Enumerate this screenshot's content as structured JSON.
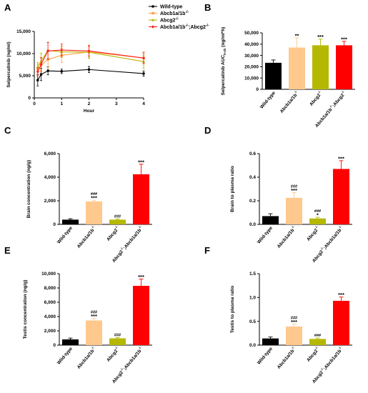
{
  "chart_data": [
    {
      "panel": "A",
      "type": "line",
      "xlabel": "Hour",
      "ylabel": "Selpercatinib (ng/ml)",
      "xlim": [
        0,
        4
      ],
      "ylim": [
        0,
        15000
      ],
      "xticks": [
        "0",
        "1",
        "2",
        "3",
        "4"
      ],
      "yticks": [
        "0",
        "5,000",
        "10,000",
        "15,000"
      ],
      "legend": "top-right",
      "series": [
        {
          "name": "Wild-type",
          "color": "#000000",
          "marker": "circle",
          "x": [
            0.125,
            0.25,
            0.5,
            1,
            2,
            4
          ],
          "y": [
            4000,
            5300,
            6100,
            6000,
            6400,
            5500
          ],
          "err": [
            1300,
            1400,
            900,
            500,
            700,
            600
          ]
        },
        {
          "name": "Abcb1a/1b",
          "sup": "-/-",
          "color": "#FFA040",
          "marker": "square",
          "x": [
            0.125,
            0.25,
            0.5,
            1,
            2,
            4
          ],
          "y": [
            6500,
            7400,
            8700,
            9600,
            10400,
            9000
          ],
          "err": [
            1100,
            1500,
            2200,
            1600,
            1500,
            1400
          ]
        },
        {
          "name": "Abcg2",
          "sup": "-/-",
          "color": "#B5B800",
          "marker": "triangle",
          "x": [
            0.125,
            0.25,
            0.5,
            1,
            2,
            4
          ],
          "y": [
            7000,
            8300,
            10700,
            10400,
            10300,
            8200
          ],
          "err": [
            1000,
            1800,
            1900,
            1300,
            1300,
            1500
          ]
        },
        {
          "name": "Abcb1a/1b",
          "sup": "-/-",
          "mid": ";Abcg2",
          "sup2": "-/-",
          "color": "#FF2020",
          "marker": "diamond",
          "x": [
            0.125,
            0.25,
            0.5,
            1,
            2,
            4
          ],
          "y": [
            5900,
            7600,
            10600,
            10800,
            10600,
            9000
          ],
          "err": [
            900,
            1500,
            1900,
            1400,
            1200,
            1200
          ]
        }
      ]
    },
    {
      "panel": "B",
      "type": "bar",
      "ylabel": "Selpercatinib AUC",
      "ylabel_sub": "0-4h",
      "ylabel_unit": "(ng/ml*h)",
      "ylim": [
        0,
        50000
      ],
      "yticks": [
        "0",
        "10,000",
        "20,000",
        "30,000",
        "40,000",
        "50,000"
      ],
      "categories": [
        "Wild-type",
        "Abcb1a/1b-/-",
        "Abcg2-/-",
        "Abcb1a/1b-/-;Abcg2-/-"
      ],
      "values": [
        23500,
        37000,
        39000,
        39000
      ],
      "errors": [
        2500,
        8500,
        5500,
        3500
      ],
      "colors": [
        "#000000",
        "#FFC88C",
        "#B5B800",
        "#FF0000"
      ],
      "stars": [
        "",
        "**",
        "***",
        "***"
      ],
      "hashes": [
        "",
        "",
        "",
        ""
      ]
    },
    {
      "panel": "C",
      "type": "bar",
      "ylabel": "Brain concentration (ng/g)",
      "ylim": [
        0,
        6000
      ],
      "yticks": [
        "0",
        "2,000",
        "4,000",
        "6,000"
      ],
      "categories": [
        "Wild-type",
        "Abcb1a/1b-/-",
        "Abcg2-/-",
        "Abcg2-/-;Abcb1a/1b-/-"
      ],
      "values": [
        400,
        1950,
        400,
        4250
      ],
      "errors": [
        80,
        100,
        60,
        850
      ],
      "colors": [
        "#000000",
        "#FFC88C",
        "#B5B800",
        "#FF0000"
      ],
      "stars": [
        "",
        "***",
        "",
        "***"
      ],
      "hashes": [
        "",
        "###",
        "###",
        ""
      ]
    },
    {
      "panel": "D",
      "type": "bar",
      "ylabel": "Brain to plasma ratio",
      "ylim": [
        0,
        0.6
      ],
      "yticks": [
        "0.0",
        "0.2",
        "0.4",
        "0.6"
      ],
      "categories": [
        "Wild-type",
        "Abcb1a/1b-/-",
        "Abcg2-/-",
        "Abcg2-/-;Abcb1a/1b-/-"
      ],
      "values": [
        0.07,
        0.225,
        0.05,
        0.47
      ],
      "errors": [
        0.02,
        0.045,
        0.01,
        0.07
      ],
      "colors": [
        "#000000",
        "#FFC88C",
        "#B5B800",
        "#FF0000"
      ],
      "stars": [
        "",
        "***",
        "*",
        "***"
      ],
      "hashes": [
        "",
        "###",
        "###",
        ""
      ]
    },
    {
      "panel": "E",
      "type": "bar",
      "ylabel": "Testis concentration (ng/g)",
      "ylim": [
        0,
        10000
      ],
      "yticks": [
        "0",
        "2,000",
        "4,000",
        "6,000",
        "8,000",
        "10,000"
      ],
      "categories": [
        "Wild-type",
        "Abcb1a/1b-/-",
        "Abcg2-/-",
        "Abcg2-/-;Abcb1a/1b-/-"
      ],
      "values": [
        800,
        3450,
        950,
        8300
      ],
      "errors": [
        180,
        320,
        120,
        950
      ],
      "colors": [
        "#000000",
        "#FFC88C",
        "#B5B800",
        "#FF0000"
      ],
      "stars": [
        "",
        "***",
        "",
        "***"
      ],
      "hashes": [
        "",
        "###",
        "###",
        ""
      ]
    },
    {
      "panel": "F",
      "type": "bar",
      "ylabel": "Testis to plasma ratio",
      "ylim": [
        0,
        1.5
      ],
      "yticks": [
        "0.0",
        "0.5",
        "1.0",
        "1.5"
      ],
      "categories": [
        "Wild-type",
        "Abcb1a/1b-/-",
        "Abcg2-/-",
        "Abcg2-/-;Abcb1a/1b-/-"
      ],
      "values": [
        0.14,
        0.39,
        0.13,
        0.93
      ],
      "errors": [
        0.03,
        0.05,
        0.02,
        0.08
      ],
      "colors": [
        "#000000",
        "#FFC88C",
        "#B5B800",
        "#FF0000"
      ],
      "stars": [
        "",
        "***",
        "",
        "***"
      ],
      "hashes": [
        "",
        "###",
        "###",
        ""
      ]
    }
  ]
}
